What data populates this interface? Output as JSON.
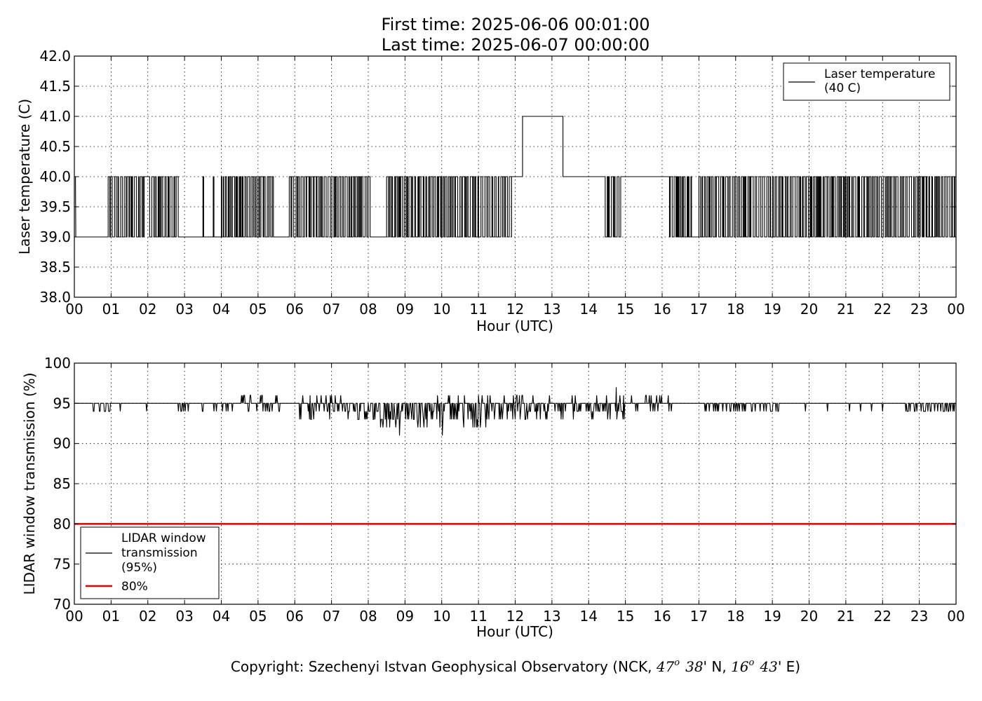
{
  "title": {
    "line1": "First time: 2025-06-06 00:01:00",
    "line2": "Last time: 2025-06-07 00:00:00"
  },
  "footer": {
    "prefix": "Copyright: Szechenyi Istvan Geophysical Observatory (NCK, ",
    "lat_deg": "47",
    "deg_mark": "o",
    "lat_min": "38",
    "lat_suffix": "' N, ",
    "lon_deg": "16",
    "lon_min": "43",
    "lon_suffix": "' E)"
  },
  "chart_data": [
    {
      "type": "line",
      "xlabel": "Hour (UTC)",
      "ylabel": "Laser temperature (C)",
      "xlim": [
        0,
        24
      ],
      "ylim": [
        38.0,
        42.0
      ],
      "x_ticks": [
        0,
        1,
        2,
        3,
        4,
        5,
        6,
        7,
        8,
        9,
        10,
        11,
        12,
        13,
        14,
        15,
        16,
        17,
        18,
        19,
        20,
        21,
        22,
        23,
        24
      ],
      "x_tick_labels": [
        "00",
        "01",
        "02",
        "03",
        "04",
        "05",
        "06",
        "07",
        "08",
        "09",
        "10",
        "11",
        "12",
        "13",
        "14",
        "15",
        "16",
        "17",
        "18",
        "19",
        "20",
        "21",
        "22",
        "23",
        "00"
      ],
      "y_ticks": [
        38.0,
        38.5,
        39.0,
        39.5,
        40.0,
        40.5,
        41.0,
        41.5,
        42.0
      ],
      "y_tick_labels": [
        "38.0",
        "38.5",
        "39.0",
        "39.5",
        "40.0",
        "40.5",
        "41.0",
        "41.5",
        "42.0"
      ],
      "grid": true,
      "legend": {
        "placement": "upper-right",
        "entries": [
          {
            "label_lines": [
              "Laser temperature",
              "(40 C)"
            ],
            "color": "#000000"
          }
        ]
      },
      "series": [
        {
          "name": "Laser temperature (40 C)",
          "color": "#000000",
          "interpretation": "1-minute samples toggling between the listed levels",
          "segments": [
            {
              "from": 0.02,
              "to": 0.03,
              "level": 40.0
            },
            {
              "from": 0.04,
              "to": 0.92,
              "level": 39.0
            },
            {
              "from": 0.92,
              "to": 1.9,
              "alternating": [
                39.0,
                40.0
              ]
            },
            {
              "from": 1.9,
              "to": 2.05,
              "level": 40.0
            },
            {
              "from": 2.05,
              "to": 2.85,
              "alternating": [
                39.0,
                40.0
              ]
            },
            {
              "from": 2.85,
              "to": 3.5,
              "level": 39.0
            },
            {
              "from": 3.5,
              "to": 3.52,
              "level": 40.0
            },
            {
              "from": 3.52,
              "to": 3.78,
              "level": 39.0
            },
            {
              "from": 3.78,
              "to": 3.8,
              "level": 40.0
            },
            {
              "from": 3.8,
              "to": 4.0,
              "level": 39.0
            },
            {
              "from": 4.0,
              "to": 5.45,
              "alternating": [
                39.0,
                40.0
              ]
            },
            {
              "from": 5.5,
              "to": 5.85,
              "level": 39.0
            },
            {
              "from": 5.85,
              "to": 8.05,
              "alternating": [
                39.0,
                40.0
              ]
            },
            {
              "from": 8.05,
              "to": 8.5,
              "level": 39.0
            },
            {
              "from": 8.5,
              "to": 11.5,
              "alternating": [
                39.0,
                40.0
              ]
            },
            {
              "from": 11.5,
              "to": 11.9,
              "alternating": [
                39.0,
                40.0
              ]
            },
            {
              "from": 11.9,
              "to": 12.05,
              "level": 40.0
            },
            {
              "from": 12.05,
              "to": 12.2,
              "level": 40.0
            },
            {
              "from": 12.2,
              "to": 13.3,
              "level": 41.0
            },
            {
              "from": 13.3,
              "to": 14.45,
              "level": 40.0
            },
            {
              "from": 14.45,
              "to": 14.9,
              "alternating": [
                39.0,
                40.0
              ]
            },
            {
              "from": 14.9,
              "to": 16.2,
              "level": 40.0
            },
            {
              "from": 16.2,
              "to": 16.8,
              "alternating": [
                39.0,
                40.0
              ]
            },
            {
              "from": 16.8,
              "to": 17.0,
              "level": 39.0
            },
            {
              "from": 17.0,
              "to": 24.0,
              "alternating": [
                39.0,
                40.0
              ]
            }
          ]
        }
      ]
    },
    {
      "type": "line",
      "xlabel": "Hour (UTC)",
      "ylabel": "LIDAR window transmission (%)",
      "xlim": [
        0,
        24
      ],
      "ylim": [
        70,
        100
      ],
      "x_ticks": [
        0,
        1,
        2,
        3,
        4,
        5,
        6,
        7,
        8,
        9,
        10,
        11,
        12,
        13,
        14,
        15,
        16,
        17,
        18,
        19,
        20,
        21,
        22,
        23,
        24
      ],
      "x_tick_labels": [
        "00",
        "01",
        "02",
        "03",
        "04",
        "05",
        "06",
        "07",
        "08",
        "09",
        "10",
        "11",
        "12",
        "13",
        "14",
        "15",
        "16",
        "17",
        "18",
        "19",
        "20",
        "21",
        "22",
        "23",
        "00"
      ],
      "y_ticks": [
        70,
        75,
        80,
        85,
        90,
        95,
        100
      ],
      "y_tick_labels": [
        "70",
        "75",
        "80",
        "85",
        "90",
        "95",
        "100"
      ],
      "grid": true,
      "legend": {
        "placement": "lower-left",
        "entries": [
          {
            "label_lines": [
              "LIDAR window",
              "transmission",
              "(95%)"
            ],
            "color": "#000000"
          },
          {
            "label_lines": [
              "80%"
            ],
            "color": "#e00000"
          }
        ]
      },
      "series": [
        {
          "name": "LIDAR window transmission (95%)",
          "color": "#000000",
          "baseline": 95,
          "interpretation": "mostly 95% with brief drops; during 07-11 h values fluctuate around 93-94%",
          "noisy_windows": [
            {
              "from": 0.4,
              "to": 1.0,
              "min": 94,
              "max": 95
            },
            {
              "from": 2.8,
              "to": 3.1,
              "min": 94,
              "max": 95
            },
            {
              "from": 3.4,
              "to": 4.3,
              "min": 94,
              "max": 95
            },
            {
              "from": 4.5,
              "to": 5.6,
              "min": 94,
              "max": 96
            },
            {
              "from": 6.1,
              "to": 7.4,
              "min": 93,
              "max": 96
            },
            {
              "from": 7.4,
              "to": 8.3,
              "min": 93,
              "max": 95
            },
            {
              "from": 8.3,
              "to": 9.8,
              "min": 92,
              "max": 94
            },
            {
              "from": 9.8,
              "to": 11.2,
              "min": 92,
              "max": 96
            },
            {
              "from": 11.2,
              "to": 12.2,
              "min": 93,
              "max": 96
            },
            {
              "from": 12.2,
              "to": 15.4,
              "min": 93,
              "max": 96
            },
            {
              "from": 15.5,
              "to": 16.3,
              "min": 94,
              "max": 96
            },
            {
              "from": 17.0,
              "to": 19.2,
              "min": 94,
              "max": 95
            },
            {
              "from": 22.6,
              "to": 24.0,
              "min": 94,
              "max": 95
            }
          ],
          "spikes": [
            {
              "x": 8.85,
              "y": 91
            },
            {
              "x": 10.02,
              "y": 91
            },
            {
              "x": 14.75,
              "y": 97
            },
            {
              "x": 6.4,
              "y": 93
            },
            {
              "x": 11.2,
              "y": 92
            }
          ],
          "single_drops": [
            1.25,
            1.97,
            5.3,
            15.75,
            19.9,
            20.5,
            21.1,
            21.4,
            21.7,
            22.0
          ]
        },
        {
          "name": "80%",
          "color": "#e00000",
          "x": [
            0,
            24
          ],
          "values": [
            80,
            80
          ]
        }
      ]
    }
  ]
}
